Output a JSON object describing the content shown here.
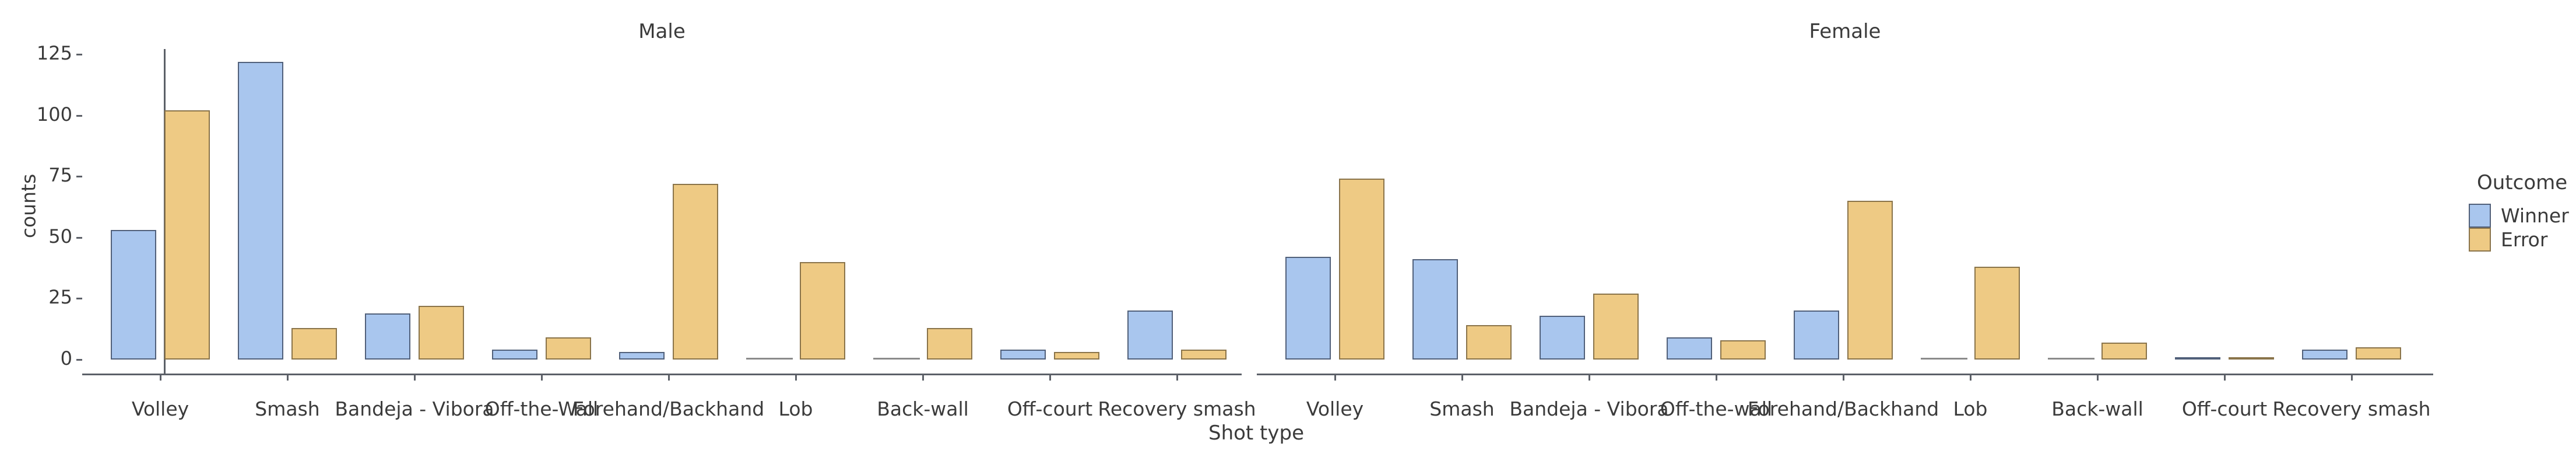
{
  "chart_data": {
    "type": "bar",
    "xlabel": "Shot type",
    "ylabel": "counts",
    "y_ticks": [
      0,
      25,
      50,
      75,
      100,
      125
    ],
    "ylim": [
      0,
      130
    ],
    "grid": false,
    "legend_position": "right",
    "legend": {
      "title": "Outcome",
      "entries": [
        {
          "label": "Winner",
          "color": "#a9c6ee"
        },
        {
          "label": "Error",
          "color": "#eeca84"
        }
      ]
    },
    "facets": [
      {
        "title": "Male",
        "categories": [
          "Volley",
          "Smash",
          "Bandeja - Vibora",
          "Off-the-Wall",
          "Forehand/Backhand",
          "Lob",
          "Back-wall",
          "Off-court",
          "Recovery smash"
        ],
        "series": [
          {
            "name": "Winner",
            "values": [
              53,
              122,
              19,
              4,
              3,
              0,
              0,
              4,
              20
            ]
          },
          {
            "name": "Error",
            "values": [
              102,
              13,
              22,
              9,
              72,
              40,
              13,
              3,
              4
            ]
          }
        ]
      },
      {
        "title": "Female",
        "categories": [
          "Volley",
          "Smash",
          "Bandeja - Vibora",
          "Off-the-wall",
          "Forehand/Backhand",
          "Lob",
          "Back-wall",
          "Off-court",
          "Recovery smash"
        ],
        "series": [
          {
            "name": "Winner",
            "values": [
              42,
              41,
              18,
              9,
              20,
              0,
              0,
              1,
              4
            ]
          },
          {
            "name": "Error",
            "values": [
              74,
              14,
              27,
              8,
              65,
              38,
              7,
              1,
              5
            ]
          }
        ]
      }
    ]
  },
  "colors": {
    "winner_fill": "#a9c6ee",
    "winner_stroke": "#51607a",
    "error_fill": "#eeca84",
    "error_stroke": "#8a744a",
    "spine": "#5c6068",
    "zero_line": "#8b8b8b",
    "text": "#3b3b3b"
  }
}
